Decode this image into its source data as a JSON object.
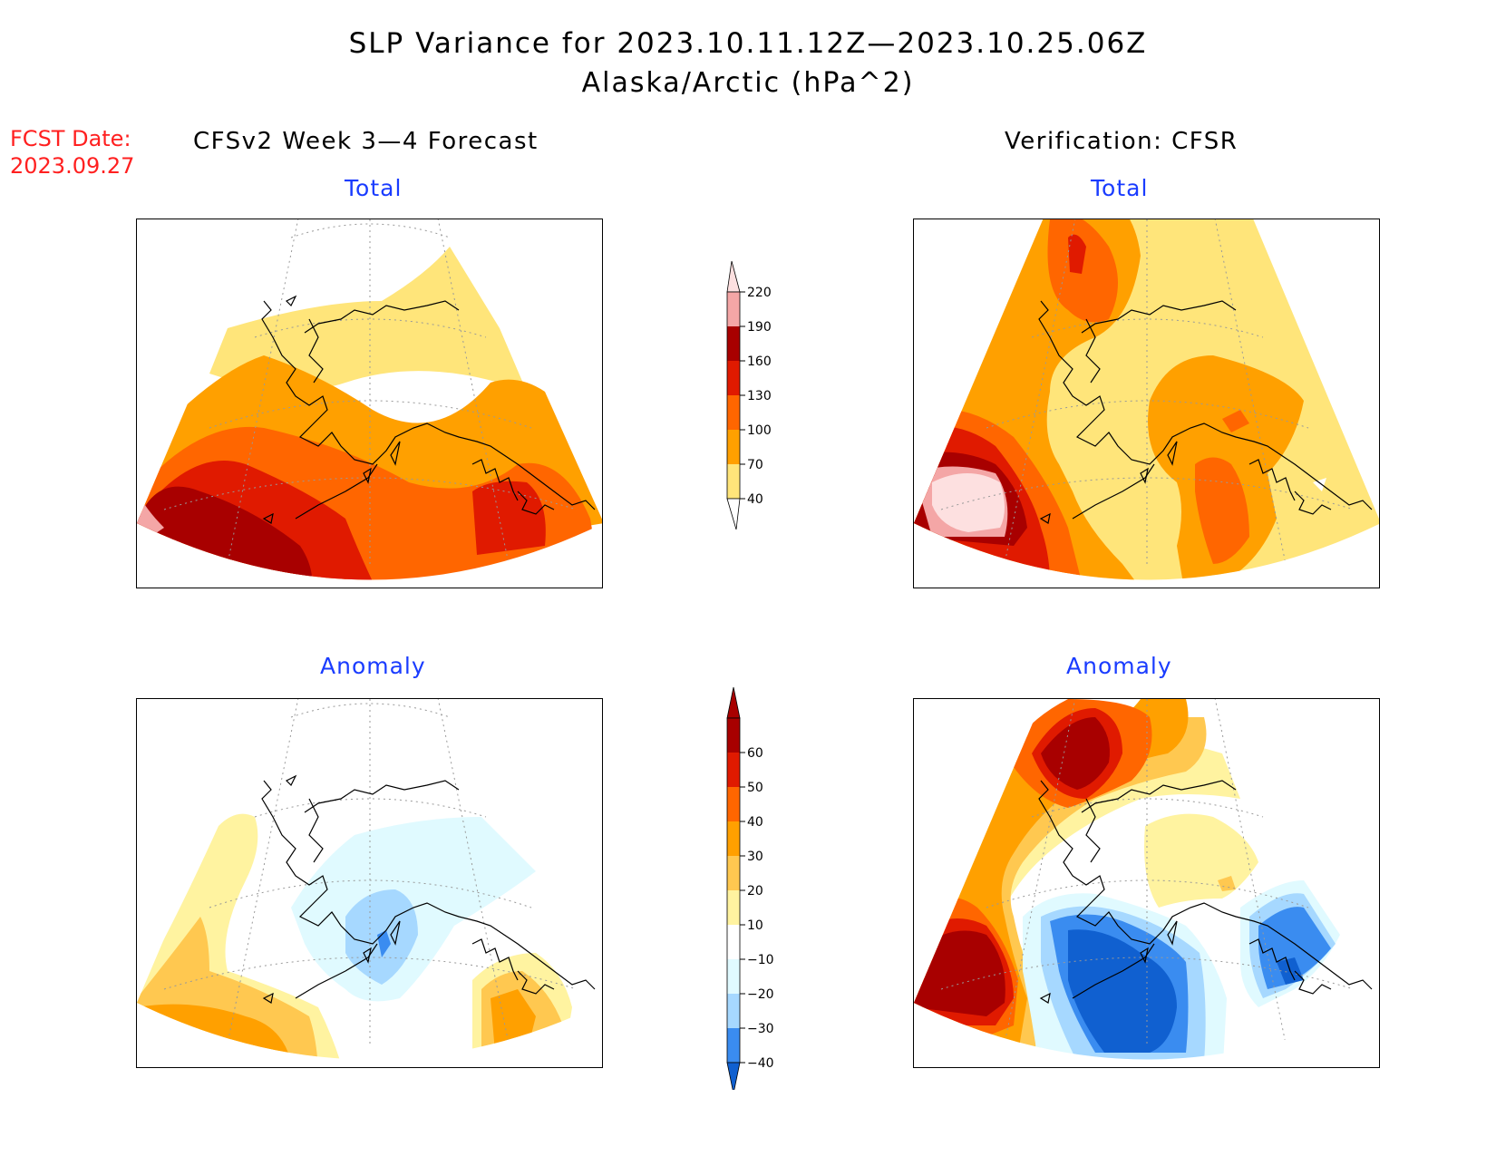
{
  "header": {
    "title_line1": "SLP Variance for 2023.10.11.12Z—2023.10.25.06Z",
    "title_line2": "Alaska/Arctic (hPa^2)",
    "fcst_label": "FCST Date:",
    "fcst_date": "2023.09.27",
    "left_column": "CFSv2 Week 3—4 Forecast",
    "right_column": "Verification: CFSR"
  },
  "panels": {
    "top_left_label": "Total",
    "top_right_label": "Total",
    "bottom_left_label": "Anomaly",
    "bottom_right_label": "Anomaly"
  },
  "colorbar_total": {
    "levels": [
      "220",
      "190",
      "160",
      "130",
      "100",
      "70",
      "40"
    ],
    "colors": [
      "#fde0e0",
      "#f4a6a6",
      "#a80000",
      "#e01a00",
      "#ff6600",
      "#ffa000",
      "#ffe57a"
    ]
  },
  "colorbar_anomaly": {
    "levels": [
      "60",
      "50",
      "40",
      "30",
      "20",
      "10",
      "−10",
      "−20",
      "−30",
      "−40"
    ],
    "colors": [
      "#a80000",
      "#e01a00",
      "#ff6600",
      "#ffa000",
      "#ffc850",
      "#fff3a0",
      "#ffffff",
      "#e0faff",
      "#a6d8ff",
      "#3a8cf0",
      "#1060d0"
    ]
  },
  "palette": {
    "yellow": "#ffe57a",
    "orange": "#ffa000",
    "dark_orange": "#ff6600",
    "red": "#e01a00",
    "dark_red": "#a80000",
    "pink": "#f4a6a6",
    "light_pink": "#fde0e0",
    "light_yellow": "#fff3a0",
    "tan": "#ffc850",
    "light_cyan": "#e0faff",
    "light_blue": "#a6d8ff",
    "blue": "#3a8cf0",
    "dark_blue": "#1060d0"
  }
}
